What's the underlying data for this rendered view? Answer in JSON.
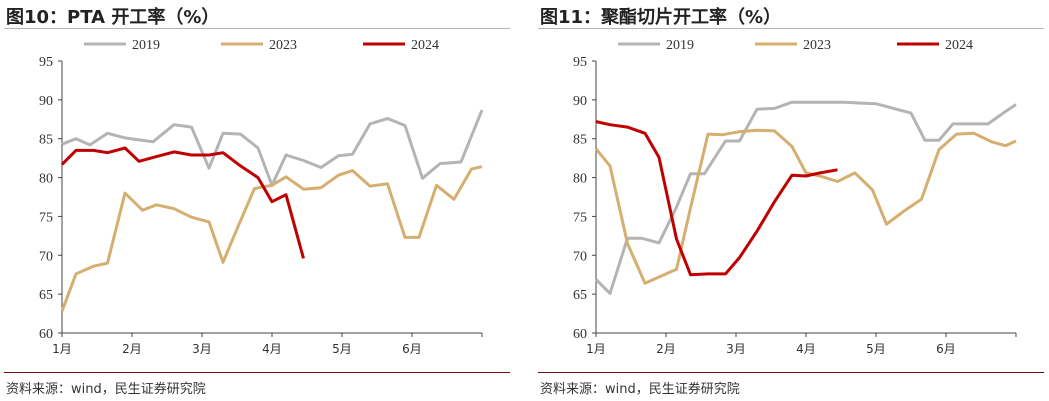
{
  "chart_data": [
    {
      "type": "line",
      "title": "图10：PTA 开工率（%）",
      "source": "资料来源：wind，民生证券研究院",
      "ylim": [
        60,
        95
      ],
      "yticks": [
        60,
        65,
        70,
        75,
        80,
        85,
        90,
        95
      ],
      "xlim": [
        1,
        7
      ],
      "xticks": [
        {
          "value": 1,
          "label": "1月"
        },
        {
          "value": 2,
          "label": "2月"
        },
        {
          "value": 3,
          "label": "3月"
        },
        {
          "value": 4,
          "label": "4月"
        },
        {
          "value": 5,
          "label": "5月"
        },
        {
          "value": 6,
          "label": "6月"
        }
      ],
      "legend_position": "top",
      "grid": false,
      "series": [
        {
          "name": "2019",
          "color": "#b4b4b4",
          "x": [
            1.0,
            1.2,
            1.4,
            1.65,
            1.9,
            2.3,
            2.6,
            2.85,
            3.1,
            3.3,
            3.55,
            3.8,
            4.0,
            4.2,
            4.45,
            4.7,
            4.95,
            5.15,
            5.4,
            5.65,
            5.9,
            6.15,
            6.4,
            6.7,
            7.0
          ],
          "y": [
            84.3,
            85.0,
            84.2,
            85.7,
            85.1,
            84.6,
            86.8,
            86.5,
            81.2,
            85.7,
            85.6,
            83.8,
            79.0,
            82.9,
            82.2,
            81.3,
            82.8,
            83.0,
            86.9,
            87.6,
            86.7,
            79.9,
            81.8,
            82.0,
            88.7
          ]
        },
        {
          "name": "2023",
          "color": "#d5af70",
          "x": [
            1.0,
            1.2,
            1.45,
            1.65,
            1.9,
            2.15,
            2.35,
            2.6,
            2.85,
            3.1,
            3.3,
            3.5,
            3.75,
            4.0,
            4.2,
            4.45,
            4.7,
            4.95,
            5.15,
            5.4,
            5.65,
            5.9,
            6.1,
            6.35,
            6.6,
            6.85,
            7.0
          ],
          "y": [
            62.8,
            67.6,
            68.6,
            69.0,
            78.0,
            75.8,
            76.5,
            76.0,
            74.9,
            74.3,
            69.1,
            73.4,
            78.6,
            79.0,
            80.1,
            78.5,
            78.7,
            80.3,
            80.9,
            78.9,
            79.2,
            72.3,
            72.3,
            79.0,
            77.2,
            81.1,
            81.4
          ]
        },
        {
          "name": "2024",
          "color": "#c00000",
          "x": [
            1.0,
            1.2,
            1.45,
            1.65,
            1.9,
            2.1,
            2.35,
            2.6,
            2.85,
            3.1,
            3.3,
            3.55,
            3.8,
            4.0,
            4.2,
            4.45
          ],
          "y": [
            81.7,
            83.5,
            83.5,
            83.2,
            83.8,
            82.1,
            82.7,
            83.3,
            82.9,
            82.9,
            83.2,
            81.5,
            80.0,
            76.9,
            77.8,
            69.6
          ]
        }
      ]
    },
    {
      "type": "line",
      "title": "图11：聚酯切片开工率（%）",
      "source": "资料来源：wind，民生证券研究院",
      "ylim": [
        60,
        95
      ],
      "yticks": [
        60,
        65,
        70,
        75,
        80,
        85,
        90,
        95
      ],
      "xlim": [
        1,
        7
      ],
      "xticks": [
        {
          "value": 1,
          "label": "1月"
        },
        {
          "value": 2,
          "label": "2月"
        },
        {
          "value": 3,
          "label": "3月"
        },
        {
          "value": 4,
          "label": "4月"
        },
        {
          "value": 5,
          "label": "5月"
        },
        {
          "value": 6,
          "label": "6月"
        }
      ],
      "legend_position": "top",
      "grid": false,
      "series": [
        {
          "name": "2019",
          "color": "#b4b4b4",
          "x": [
            1.0,
            1.2,
            1.45,
            1.65,
            1.9,
            2.15,
            2.35,
            2.55,
            2.85,
            3.05,
            3.3,
            3.55,
            3.8,
            4.05,
            4.3,
            4.55,
            4.75,
            5.0,
            5.25,
            5.5,
            5.7,
            5.9,
            6.1,
            6.35,
            6.6,
            6.85,
            7.0
          ],
          "y": [
            66.9,
            65.1,
            72.2,
            72.2,
            71.6,
            76.2,
            80.5,
            80.5,
            84.7,
            84.7,
            88.8,
            88.9,
            89.7,
            89.7,
            89.7,
            89.7,
            89.6,
            89.5,
            88.9,
            88.3,
            84.8,
            84.8,
            86.9,
            86.9,
            86.9,
            88.5,
            89.4
          ]
        },
        {
          "name": "2023",
          "color": "#d5af70",
          "x": [
            1.0,
            1.2,
            1.45,
            1.7,
            1.9,
            2.15,
            2.35,
            2.6,
            2.8,
            3.05,
            3.3,
            3.55,
            3.8,
            4.0,
            4.2,
            4.45,
            4.7,
            4.95,
            5.15,
            5.4,
            5.65,
            5.9,
            6.15,
            6.4,
            6.65,
            6.85,
            7.0
          ],
          "y": [
            83.7,
            81.5,
            71.5,
            66.4,
            67.2,
            68.2,
            76.1,
            85.6,
            85.5,
            85.9,
            86.1,
            86.0,
            84.0,
            80.6,
            80.2,
            79.5,
            80.6,
            78.4,
            74.0,
            75.7,
            77.2,
            83.6,
            85.6,
            85.7,
            84.6,
            84.1,
            84.7
          ]
        },
        {
          "name": "2024",
          "color": "#c00000",
          "x": [
            1.0,
            1.2,
            1.45,
            1.7,
            1.9,
            2.15,
            2.35,
            2.6,
            2.85,
            3.05,
            3.3,
            3.55,
            3.8,
            4.0,
            4.2,
            4.45
          ],
          "y": [
            87.2,
            86.8,
            86.5,
            85.7,
            82.6,
            72.1,
            67.5,
            67.6,
            67.6,
            69.7,
            73.1,
            76.9,
            80.3,
            80.2,
            80.6,
            81.0
          ]
        }
      ]
    }
  ]
}
